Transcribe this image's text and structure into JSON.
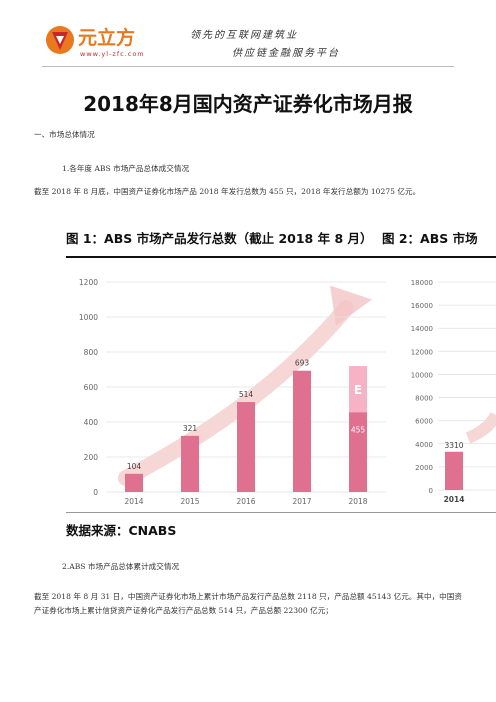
{
  "header": {
    "brand": "元立方",
    "url": "www.yl-zfc.com",
    "slogan_line1": "领先的互联网建筑业",
    "slogan_line2": "供应链金融服务平台",
    "colors": {
      "brand_orange": "#e8791e",
      "brand_red": "#c8282a"
    }
  },
  "title": "2018年8月国内资产证券化市场月报",
  "section1": {
    "heading": "一、市场总体情况",
    "sub1": "1.各年度 ABS 市场产品总体成交情况",
    "para1": "截至 2018 年 8 月底，中国资产证券化市场产品 2018 年发行总数为 455 只，2018 年发行总额为 10275 亿元。",
    "sub2": "2.ABS 市场产品总体累计成交情况",
    "para2": "截至 2018 年 8 月 31 日，中国资产证券化市场上累计市场产品发行产品总数 2118 只，产品总额 45143 亿元。其中，中国资产证券化市场上累计信贷资产证券化产品发行产品总数 514 只，产品总额 22300 亿元；"
  },
  "figure": {
    "fig1_title": "图 1：ABS 市场产品发行总数（截止 2018 年 8 月）",
    "fig2_title": "图 2：ABS 市场",
    "source": "数据来源：CNABS",
    "estimate_label": "E"
  },
  "chart_data": [
    {
      "type": "bar",
      "categories": [
        "2014",
        "2015",
        "2016",
        "2017",
        "2018"
      ],
      "series": [
        {
          "values": [
            104,
            321,
            514,
            693,
            455
          ]
        }
      ],
      "data_labels": [
        "104",
        "321",
        "514",
        "693",
        "455"
      ],
      "estimate": {
        "category": "2018",
        "value": 720,
        "label": "E"
      },
      "yticks": [
        0,
        200,
        400,
        600,
        800,
        1000,
        1200
      ],
      "ylim": [
        0,
        1200
      ],
      "grid": true,
      "colors": {
        "bar": "#e0708f",
        "estimate": "#f6b3c5",
        "arrow": "#f3c4c4"
      }
    },
    {
      "type": "bar",
      "categories": [
        "2014"
      ],
      "series": [
        {
          "values": [
            3310
          ]
        }
      ],
      "data_labels": [
        "3310"
      ],
      "yticks": [
        0,
        2000,
        4000,
        6000,
        8000,
        10000,
        12000,
        14000,
        16000,
        18000
      ],
      "ylim": [
        0,
        18000
      ],
      "grid": true,
      "colors": {
        "bar": "#e0708f"
      }
    }
  ]
}
